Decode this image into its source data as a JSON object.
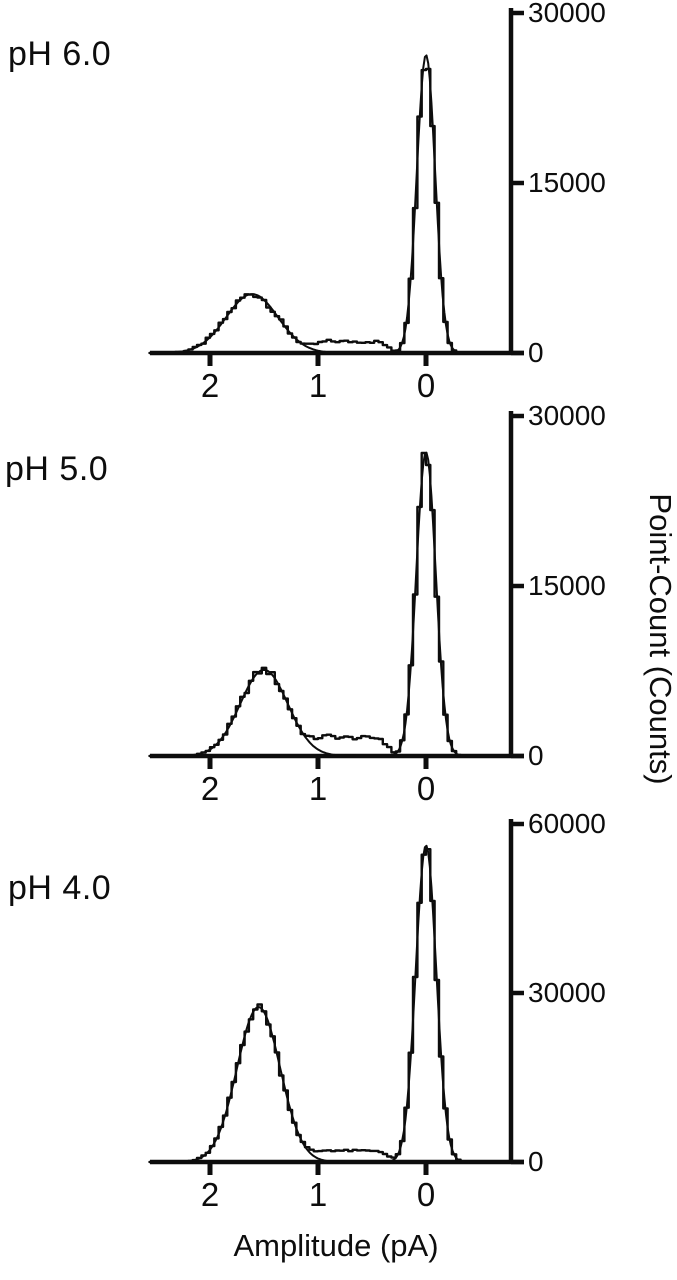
{
  "figure": {
    "background": "#ffffff",
    "ink_color": "#0d0d0d"
  },
  "chart_data": [
    {
      "type": "line",
      "subtype": "amplitude histogram with Gaussian fit",
      "title": "pH 6.0",
      "xlabel": "Amplitude (pA)",
      "ylabel": "Point-Count (Counts)",
      "x_axis_reversed": true,
      "xlim": [
        2.56,
        -0.78
      ],
      "ylim": [
        0,
        30000
      ],
      "x_ticks": [
        2,
        1,
        0
      ],
      "y_ticks": [
        0,
        15000,
        30000
      ],
      "bin_width_pA": 0.04,
      "legend": "none",
      "grid": false,
      "series": [
        {
          "name": "histogram",
          "style": "steps"
        },
        {
          "name": "gaussian-fit",
          "style": "smooth"
        }
      ],
      "gaussians": [
        {
          "component": "open-state-peak",
          "mean_pA": 1.61,
          "sigma_pA": 0.24,
          "peak_counts": 5200
        },
        {
          "component": "closed-state-peak",
          "mean_pA": 0.0,
          "sigma_pA": 0.085,
          "peak_counts": 26300
        }
      ],
      "valley_counts": 1000
    },
    {
      "type": "line",
      "subtype": "amplitude histogram with Gaussian fit",
      "title": "pH 5.0",
      "xlabel": "Amplitude (pA)",
      "ylabel": "Point-Count (Counts)",
      "x_axis_reversed": true,
      "xlim": [
        2.56,
        -0.78
      ],
      "ylim": [
        0,
        30000
      ],
      "x_ticks": [
        2,
        1,
        0
      ],
      "y_ticks": [
        0,
        15000,
        30000
      ],
      "bin_width_pA": 0.04,
      "legend": "none",
      "grid": false,
      "series": [
        {
          "name": "histogram",
          "style": "steps"
        },
        {
          "name": "gaussian-fit",
          "style": "smooth"
        }
      ],
      "gaussians": [
        {
          "component": "open-state-peak",
          "mean_pA": 1.5,
          "sigma_pA": 0.22,
          "peak_counts": 7600
        },
        {
          "component": "closed-state-peak",
          "mean_pA": 0.0,
          "sigma_pA": 0.09,
          "peak_counts": 26800
        }
      ],
      "valley_counts": 1600
    },
    {
      "type": "line",
      "subtype": "amplitude histogram with Gaussian fit",
      "title": "pH 4.0",
      "xlabel": "Amplitude (pA)",
      "ylabel": "Point-Count (Counts)",
      "x_axis_reversed": true,
      "xlim": [
        2.56,
        -0.78
      ],
      "ylim": [
        0,
        60000
      ],
      "x_ticks": [
        2,
        1,
        0
      ],
      "y_ticks": [
        0,
        30000,
        60000
      ],
      "bin_width_pA": 0.04,
      "legend": "none",
      "grid": false,
      "series": [
        {
          "name": "histogram",
          "style": "steps"
        },
        {
          "name": "gaussian-fit",
          "style": "smooth"
        }
      ],
      "gaussians": [
        {
          "component": "open-state-peak",
          "mean_pA": 1.55,
          "sigma_pA": 0.2,
          "peak_counts": 27500
        },
        {
          "component": "closed-state-peak",
          "mean_pA": 0.0,
          "sigma_pA": 0.095,
          "peak_counts": 56200
        }
      ],
      "valley_counts": 2000
    }
  ]
}
